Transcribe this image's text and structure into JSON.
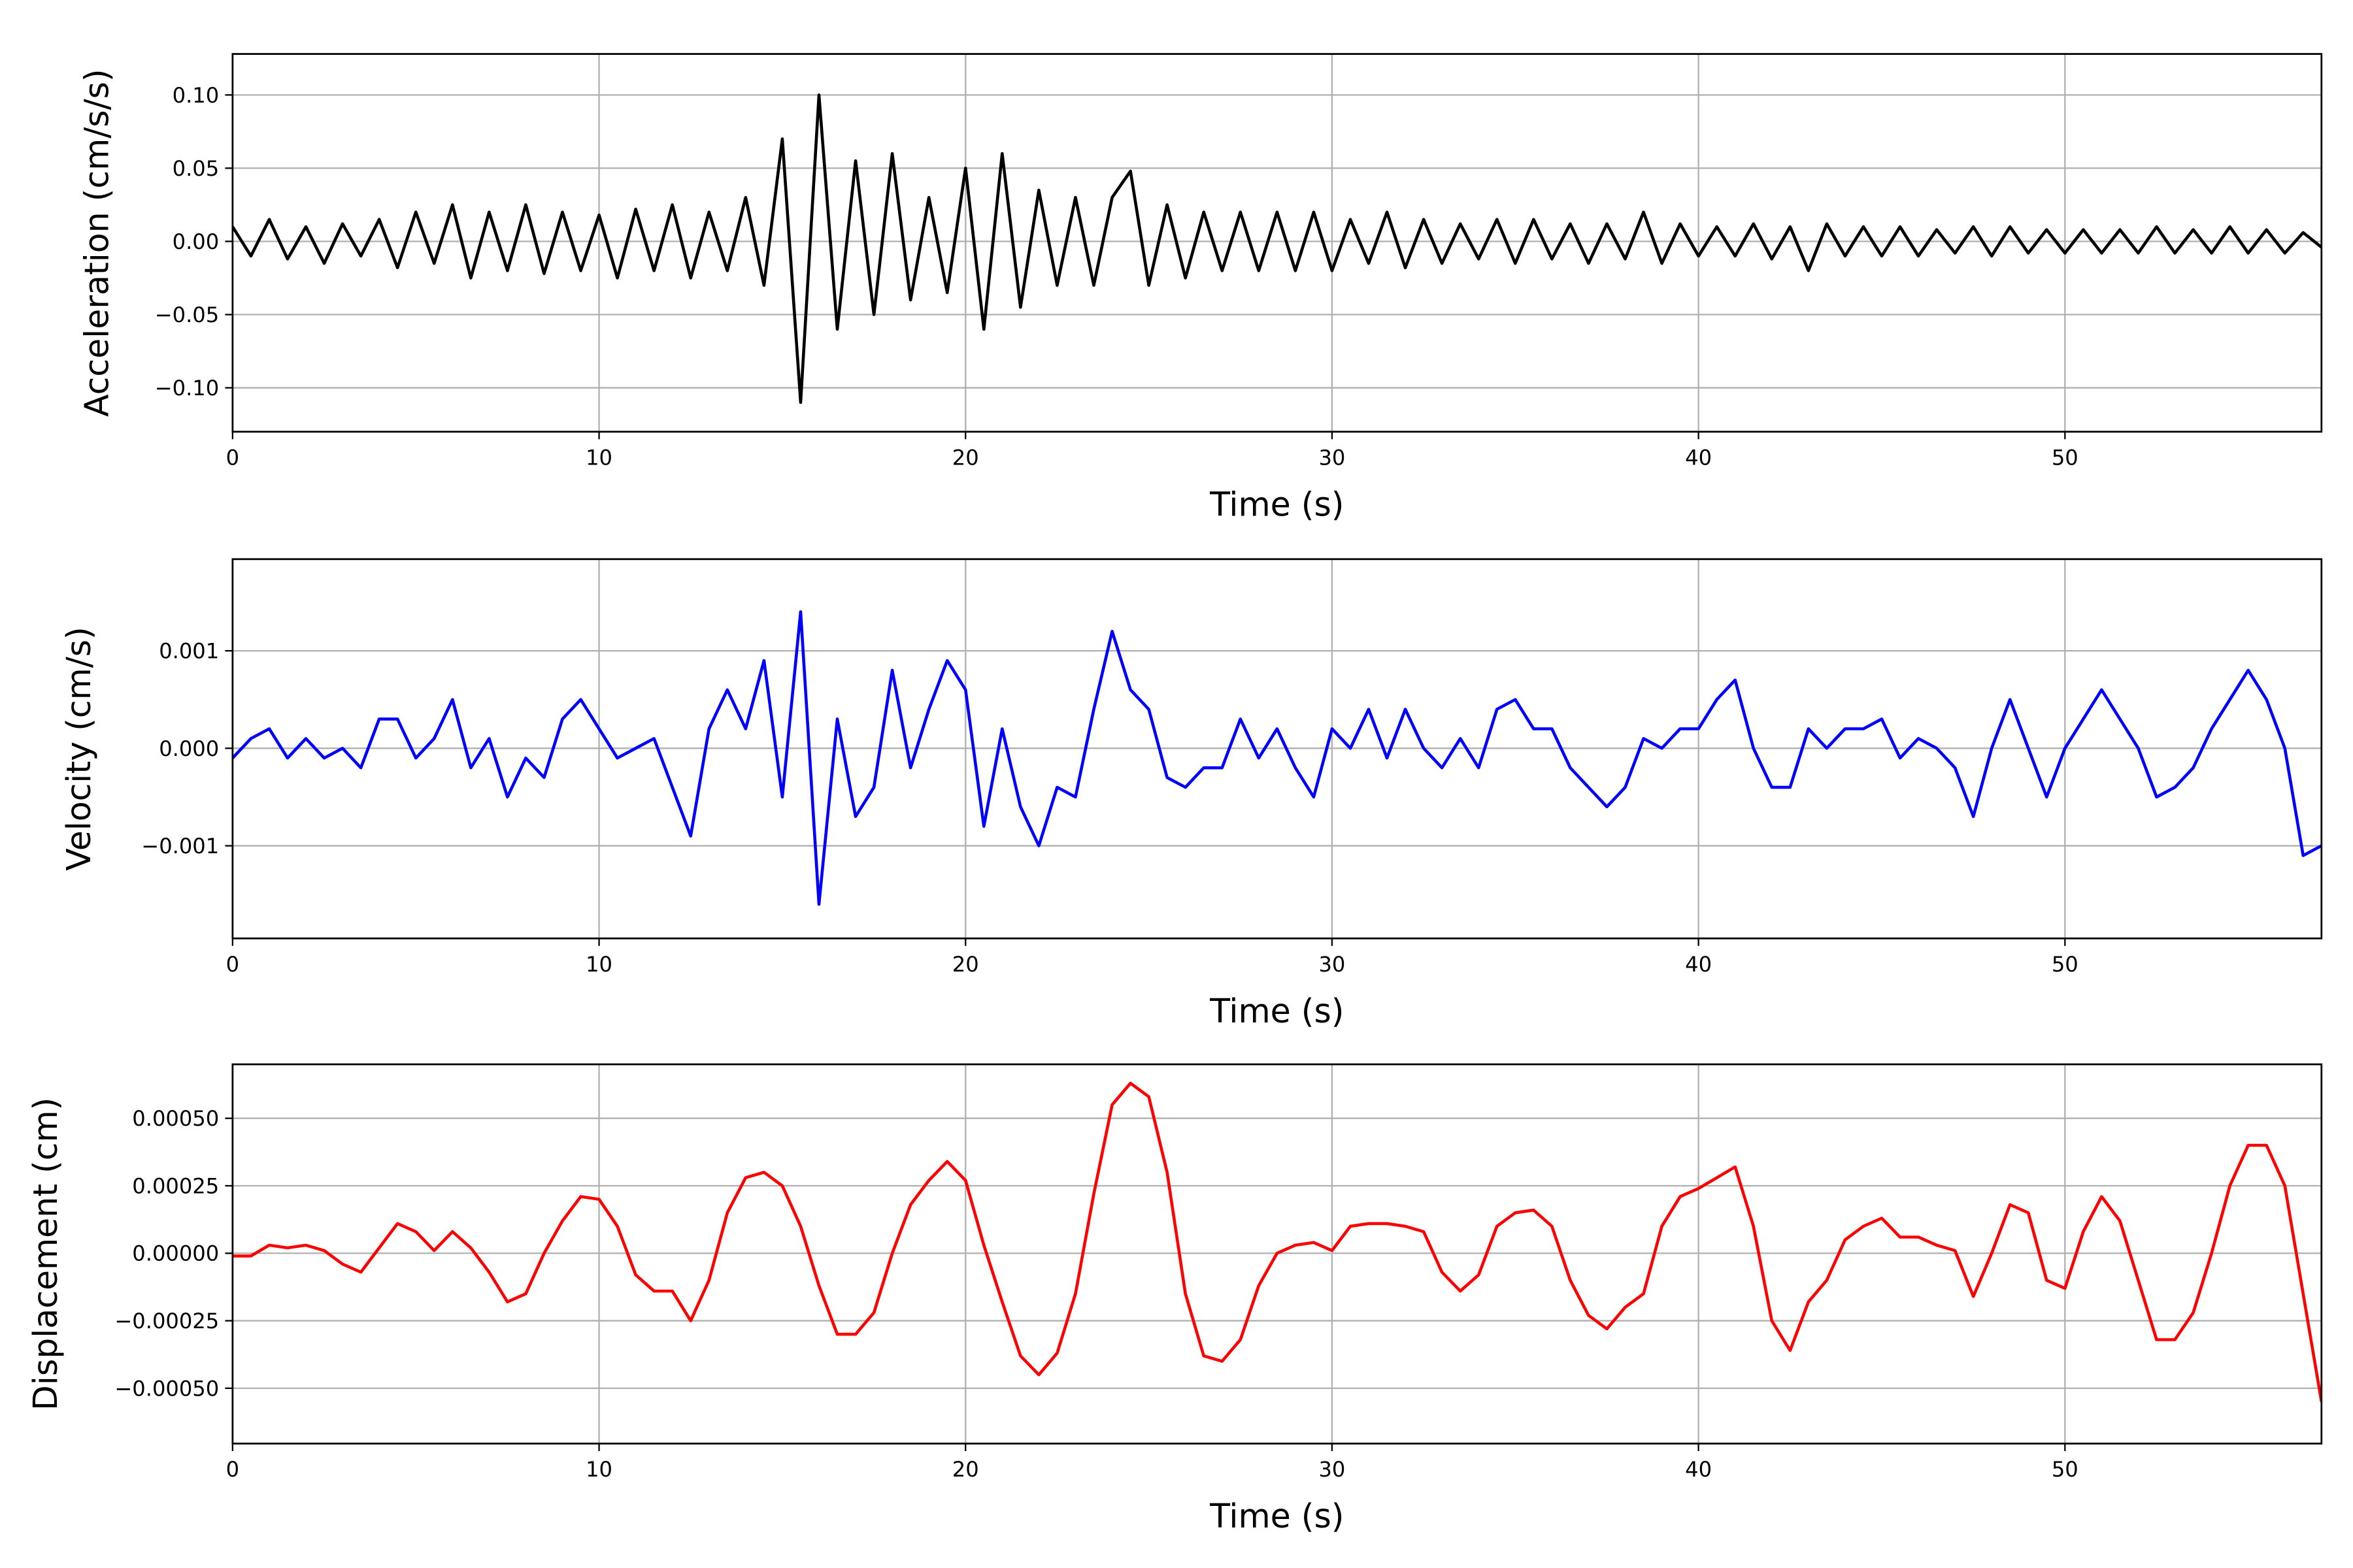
{
  "chart_data": [
    {
      "type": "line",
      "xlabel": "Time (s)",
      "ylabel": "Acceleration (cm/s/s)",
      "color": "#000000",
      "xlim": [
        0,
        57
      ],
      "xticks": [
        0,
        10,
        20,
        30,
        40,
        50
      ],
      "ylim": [
        -0.13,
        0.128
      ],
      "yticks": [
        {
          "value": -0.1,
          "label": "−0.10"
        },
        {
          "value": -0.05,
          "label": "−0.05"
        },
        {
          "value": 0,
          "label": "0.00"
        },
        {
          "value": 0.05,
          "label": "0.05"
        },
        {
          "value": 0.1,
          "label": "0.10"
        }
      ],
      "grid": true,
      "x": [
        0,
        0.5,
        1,
        1.5,
        2,
        2.5,
        3,
        3.5,
        4,
        4.5,
        5,
        5.5,
        6,
        6.5,
        7,
        7.5,
        8,
        8.5,
        9,
        9.5,
        10,
        10.5,
        11,
        11.5,
        12,
        12.5,
        13,
        13.5,
        14,
        14.5,
        15,
        15.5,
        16,
        16.5,
        17,
        17.5,
        18,
        18.5,
        19,
        19.5,
        20,
        20.5,
        21,
        21.5,
        22,
        22.5,
        23,
        23.5,
        24,
        24.5,
        25,
        25.5,
        26,
        26.5,
        27,
        27.5,
        28,
        28.5,
        29,
        29.5,
        30,
        30.5,
        31,
        31.5,
        32,
        32.5,
        33,
        33.5,
        34,
        34.5,
        35,
        35.5,
        36,
        36.5,
        37,
        37.5,
        38,
        38.5,
        39,
        39.5,
        40,
        40.5,
        41,
        41.5,
        42,
        42.5,
        43,
        43.5,
        44,
        44.5,
        45,
        45.5,
        46,
        46.5,
        47,
        47.5,
        48,
        48.5,
        49,
        49.5,
        50,
        50.5,
        51,
        51.5,
        52,
        52.5,
        53,
        53.5,
        54,
        54.5,
        55,
        55.5,
        56,
        56.5,
        57
      ],
      "values": [
        0.01,
        -0.01,
        0.015,
        -0.012,
        0.01,
        -0.015,
        0.012,
        -0.01,
        0.015,
        -0.018,
        0.02,
        -0.015,
        0.025,
        -0.025,
        0.02,
        -0.02,
        0.025,
        -0.022,
        0.02,
        -0.02,
        0.018,
        -0.025,
        0.022,
        -0.02,
        0.025,
        -0.025,
        0.02,
        -0.02,
        0.03,
        -0.03,
        0.07,
        -0.11,
        0.1,
        -0.06,
        0.055,
        -0.05,
        0.06,
        -0.04,
        0.03,
        -0.035,
        0.05,
        -0.06,
        0.06,
        -0.045,
        0.035,
        -0.03,
        0.03,
        -0.03,
        0.03,
        0.048,
        -0.03,
        0.025,
        -0.025,
        0.02,
        -0.02,
        0.02,
        -0.02,
        0.02,
        -0.02,
        0.02,
        -0.02,
        0.015,
        -0.015,
        0.02,
        -0.018,
        0.015,
        -0.015,
        0.012,
        -0.012,
        0.015,
        -0.015,
        0.015,
        -0.012,
        0.012,
        -0.015,
        0.012,
        -0.012,
        0.02,
        -0.015,
        0.012,
        -0.01,
        0.01,
        -0.01,
        0.012,
        -0.012,
        0.01,
        -0.02,
        0.012,
        -0.01,
        0.01,
        -0.01,
        0.01,
        -0.01,
        0.008,
        -0.008,
        0.01,
        -0.01,
        0.01,
        -0.008,
        0.008,
        -0.008,
        0.008,
        -0.008,
        0.008,
        -0.008,
        0.01,
        -0.008,
        0.008,
        -0.008,
        0.01,
        -0.008,
        0.008,
        -0.008,
        0.006,
        -0.004
      ]
    },
    {
      "type": "line",
      "xlabel": "Time (s)",
      "ylabel": "Velocity (cm/s)",
      "color": "#0000ff",
      "xlim": [
        0,
        57
      ],
      "xticks": [
        0,
        10,
        20,
        30,
        40,
        50
      ],
      "ylim": [
        -0.00195,
        0.00194
      ],
      "yticks": [
        {
          "value": -0.001,
          "label": "−0.001"
        },
        {
          "value": 0,
          "label": "0.000"
        },
        0.001
      ],
      "grid": true,
      "x": [
        0,
        0.5,
        1,
        1.5,
        2,
        2.5,
        3,
        3.5,
        4,
        4.5,
        5,
        5.5,
        6,
        6.5,
        7,
        7.5,
        8,
        8.5,
        9,
        9.5,
        10,
        10.5,
        11,
        11.5,
        12,
        12.5,
        13,
        13.5,
        14,
        14.5,
        15,
        15.5,
        16,
        16.5,
        17,
        17.5,
        18,
        18.5,
        19,
        19.5,
        20,
        20.5,
        21,
        21.5,
        22,
        22.5,
        23,
        23.5,
        24,
        24.5,
        25,
        25.5,
        26,
        26.5,
        27,
        27.5,
        28,
        28.5,
        29,
        29.5,
        30,
        30.5,
        31,
        31.5,
        32,
        32.5,
        33,
        33.5,
        34,
        34.5,
        35,
        35.5,
        36,
        36.5,
        37,
        37.5,
        38,
        38.5,
        39,
        39.5,
        40,
        40.5,
        41,
        41.5,
        42,
        42.5,
        43,
        43.5,
        44,
        44.5,
        45,
        45.5,
        46,
        46.5,
        47,
        47.5,
        48,
        48.5,
        49,
        49.5,
        50,
        50.5,
        51,
        51.5,
        52,
        52.5,
        53,
        53.5,
        54,
        54.5,
        55,
        55.5,
        56,
        56.5,
        57
      ],
      "values": [
        -0.0001,
        0.0001,
        0.0002,
        -0.0001,
        0.0001,
        -0.0001,
        0,
        -0.0002,
        0.0003,
        0.0003,
        -0.0001,
        0.0001,
        0.0005,
        -0.0002,
        0.0001,
        -0.0005,
        -0.0001,
        -0.0003,
        0.0003,
        0.0005,
        0.0002,
        -0.0001,
        0,
        0.0001,
        -0.0004,
        -0.0009,
        0.0002,
        0.0006,
        0.0002,
        0.0009,
        -0.0005,
        0.0014,
        -0.0016,
        0.0003,
        -0.0007,
        -0.0004,
        0.0008,
        -0.0002,
        0.0004,
        0.0009,
        0.0006,
        -0.0008,
        0.0002,
        -0.0006,
        -0.001,
        -0.0004,
        -0.0005,
        0.0004,
        0.0012,
        0.0006,
        0.0004,
        -0.0003,
        -0.0004,
        -0.0002,
        -0.0002,
        0.0003,
        -0.0001,
        0.0002,
        -0.0002,
        -0.0005,
        0.0002,
        0,
        0.0004,
        -0.0001,
        0.0004,
        0,
        -0.0002,
        0.0001,
        -0.0002,
        0.0004,
        0.0005,
        0.0002,
        0.0002,
        -0.0002,
        -0.0004,
        -0.0006,
        -0.0004,
        0.0001,
        0,
        0.0002,
        0.0002,
        0.0005,
        0.0007,
        0,
        -0.0004,
        -0.0004,
        0.0002,
        0,
        0.0002,
        0.0002,
        0.0003,
        -0.0001,
        0.0001,
        0,
        -0.0002,
        -0.0007,
        0,
        0.0005,
        0,
        -0.0005,
        0,
        0.0003,
        0.0006,
        0.0003,
        0,
        -0.0005,
        -0.0004,
        -0.0002,
        0.0002,
        0.0005,
        0.0008,
        0.0005,
        0,
        -0.0011,
        -0.001
      ]
    },
    {
      "type": "line",
      "xlabel": "Time (s)",
      "ylabel": "Displacement (cm)",
      "color": "#ff0000",
      "xlim": [
        0,
        57
      ],
      "xticks": [
        0,
        10,
        20,
        30,
        40,
        50
      ],
      "ylim": [
        -0.000705,
        0.0007
      ],
      "yticks": [
        {
          "value": -0.0005,
          "label": "−0.00050"
        },
        {
          "value": -0.00025,
          "label": "−0.00025"
        },
        {
          "value": 0,
          "label": "0.00000"
        },
        {
          "value": 0.00025,
          "label": "0.00025"
        },
        {
          "value": 0.0005,
          "label": "0.00050"
        }
      ],
      "grid": true,
      "x": [
        0,
        0.5,
        1,
        1.5,
        2,
        2.5,
        3,
        3.5,
        4,
        4.5,
        5,
        5.5,
        6,
        6.5,
        7,
        7.5,
        8,
        8.5,
        9,
        9.5,
        10,
        10.5,
        11,
        11.5,
        12,
        12.5,
        13,
        13.5,
        14,
        14.5,
        15,
        15.5,
        16,
        16.5,
        17,
        17.5,
        18,
        18.5,
        19,
        19.5,
        20,
        20.5,
        21,
        21.5,
        22,
        22.5,
        23,
        23.5,
        24,
        24.5,
        25,
        25.5,
        26,
        26.5,
        27,
        27.5,
        28,
        28.5,
        29,
        29.5,
        30,
        30.5,
        31,
        31.5,
        32,
        32.5,
        33,
        33.5,
        34,
        34.5,
        35,
        35.5,
        36,
        36.5,
        37,
        37.5,
        38,
        38.5,
        39,
        39.5,
        40,
        40.5,
        41,
        41.5,
        42,
        42.5,
        43,
        43.5,
        44,
        44.5,
        45,
        45.5,
        46,
        46.5,
        47,
        47.5,
        48,
        48.5,
        49,
        49.5,
        50,
        50.5,
        51,
        51.5,
        52,
        52.5,
        53,
        53.5,
        54,
        54.5,
        55,
        55.5,
        56,
        56.5,
        57
      ],
      "values": [
        -1e-05,
        -1e-05,
        3e-05,
        2e-05,
        3e-05,
        1e-05,
        -4e-05,
        -7e-05,
        2e-05,
        0.00011,
        8e-05,
        1e-05,
        8e-05,
        2e-05,
        -7e-05,
        -0.00018,
        -0.00015,
        0,
        0.00012,
        0.00021,
        0.0002,
        0.0001,
        -8e-05,
        -0.00014,
        -0.00014,
        -0.00025,
        -0.0001,
        0.00015,
        0.00028,
        0.0003,
        0.00025,
        0.0001,
        -0.00012,
        -0.0003,
        -0.0003,
        -0.00022,
        0,
        0.00018,
        0.00027,
        0.00034,
        0.00027,
        3e-05,
        -0.00018,
        -0.00038,
        -0.00045,
        -0.00037,
        -0.00015,
        0.00022,
        0.00055,
        0.00063,
        0.00058,
        0.0003,
        -0.00015,
        -0.00038,
        -0.0004,
        -0.00032,
        -0.00012,
        0,
        3e-05,
        4e-05,
        1e-05,
        0.0001,
        0.00011,
        0.00011,
        0.0001,
        8e-05,
        -7e-05,
        -0.00014,
        -8e-05,
        0.0001,
        0.00015,
        0.00016,
        0.0001,
        -0.0001,
        -0.00023,
        -0.00028,
        -0.0002,
        -0.00015,
        0.0001,
        0.00021,
        0.00024,
        0.00028,
        0.00032,
        0.0001,
        -0.00025,
        -0.00036,
        -0.00018,
        -0.0001,
        5e-05,
        0.0001,
        0.00013,
        6e-05,
        6e-05,
        3e-05,
        1e-05,
        -0.00016,
        0,
        0.00018,
        0.00015,
        -0.0001,
        -0.00013,
        8e-05,
        0.00021,
        0.00012,
        -0.0001,
        -0.00032,
        -0.00032,
        -0.00022,
        0,
        0.00025,
        0.0004,
        0.0004,
        0.00025,
        -0.00015,
        -0.00055
      ]
    }
  ]
}
